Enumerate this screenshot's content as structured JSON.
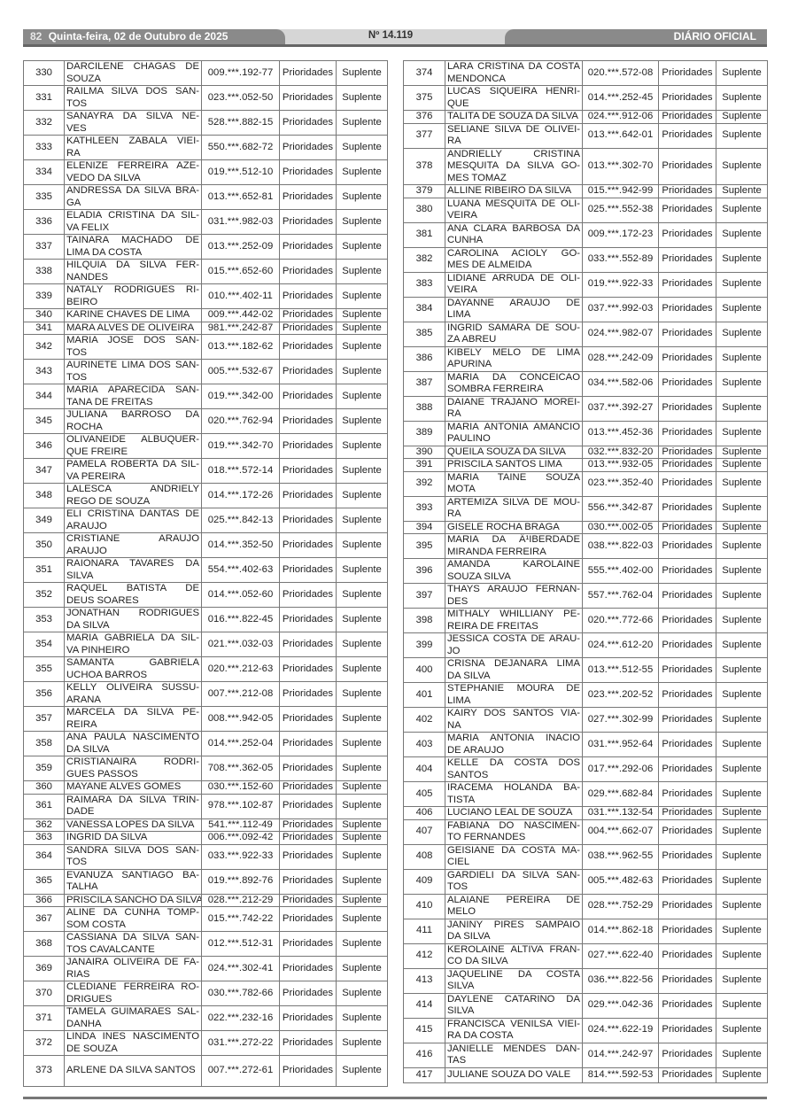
{
  "header": {
    "page_number": "82",
    "date": "Quinta-feira, 02 de Outubro de 2025",
    "edition": "Nº 14.119",
    "publication": "DIÁRIO OFICIAL"
  },
  "tables": {
    "left": [
      {
        "n": "330",
        "name": "DARCILENE CHAGAS DE\nSOUZA",
        "cpf": "009.***.192-77",
        "cat": "Prioridades",
        "status": "Suplente"
      },
      {
        "n": "331",
        "name": "RAILMA SILVA DOS SAN-\nTOS",
        "cpf": "023.***.052-50",
        "cat": "Prioridades",
        "status": "Suplente"
      },
      {
        "n": "332",
        "name": "SANAYRA DA SILVA NE-\nVES",
        "cpf": "528.***.882-15",
        "cat": "Prioridades",
        "status": "Suplente"
      },
      {
        "n": "333",
        "name": "KATHLEEN ZABALA VIEI-\nRA",
        "cpf": "550.***.682-72",
        "cat": "Prioridades",
        "status": "Suplente"
      },
      {
        "n": "334",
        "name": "ELENIZE FERREIRA AZE-\nVEDO DA SILVA",
        "cpf": "019.***.512-10",
        "cat": "Prioridades",
        "status": "Suplente"
      },
      {
        "n": "335",
        "name": "ANDRESSA DA SILVA BRA-\nGA",
        "cpf": "013.***.652-81",
        "cat": "Prioridades",
        "status": "Suplente"
      },
      {
        "n": "336",
        "name": "ELADIA CRISTINA DA SIL-\nVA FELIX",
        "cpf": "031.***.982-03",
        "cat": "Prioridades",
        "status": "Suplente"
      },
      {
        "n": "337",
        "name": "TAINARA MACHADO DE\nLIMA DA COSTA",
        "cpf": "013.***.252-09",
        "cat": "Prioridades",
        "status": "Suplente"
      },
      {
        "n": "338",
        "name": "HILQUIA DA SILVA FER-\nNANDES",
        "cpf": "015.***.652-60",
        "cat": "Prioridades",
        "status": "Suplente"
      },
      {
        "n": "339",
        "name": "NATALY RODRIGUES RI-\nBEIRO",
        "cpf": "010.***.402-11",
        "cat": "Prioridades",
        "status": "Suplente"
      },
      {
        "n": "340",
        "name": "KARINE CHAVES DE LIMA",
        "cpf": "009.***.442-02",
        "cat": "Prioridades",
        "status": "Suplente"
      },
      {
        "n": "341",
        "name": "MARA ALVES DE OLIVEIRA",
        "cpf": "981.***.242-87",
        "cat": "Prioridades",
        "status": "Suplente"
      },
      {
        "n": "342",
        "name": "MARIA JOSE DOS SAN-\nTOS",
        "cpf": "013.***.182-62",
        "cat": "Prioridades",
        "status": "Suplente"
      },
      {
        "n": "343",
        "name": "AURINETE LIMA DOS SAN-\nTOS",
        "cpf": "005.***.532-67",
        "cat": "Prioridades",
        "status": "Suplente"
      },
      {
        "n": "344",
        "name": "MARIA APARECIDA SAN-\nTANA DE FREITAS",
        "cpf": "019.***.342-00",
        "cat": "Prioridades",
        "status": "Suplente"
      },
      {
        "n": "345",
        "name": "JULIANA BARROSO DA\nROCHA",
        "cpf": "020.***.762-94",
        "cat": "Prioridades",
        "status": "Suplente"
      },
      {
        "n": "346",
        "name": "OLIVANEIDE ALBUQUER-\nQUE FREIRE",
        "cpf": "019.***.342-70",
        "cat": "Prioridades",
        "status": "Suplente"
      },
      {
        "n": "347",
        "name": "PAMELA ROBERTA DA SIL-\nVA PEREIRA",
        "cpf": "018.***.572-14",
        "cat": "Prioridades",
        "status": "Suplente"
      },
      {
        "n": "348",
        "name": "LALESCA ANDRIELY\nREGO DE SOUZA",
        "cpf": "014.***.172-26",
        "cat": "Prioridades",
        "status": "Suplente"
      },
      {
        "n": "349",
        "name": "ELI CRISTINA DANTAS DE\nARAUJO",
        "cpf": "025.***.842-13",
        "cat": "Prioridades",
        "status": "Suplente"
      },
      {
        "n": "350",
        "name": "CRISTIANE ARAUJO\nARAUJO",
        "cpf": "014.***.352-50",
        "cat": "Prioridades",
        "status": "Suplente"
      },
      {
        "n": "351",
        "name": "RAIONARA TAVARES DA\nSILVA",
        "cpf": "554.***.402-63",
        "cat": "Prioridades",
        "status": "Suplente"
      },
      {
        "n": "352",
        "name": "RAQUEL BATISTA DE\nDEUS SOARES",
        "cpf": "014.***.052-60",
        "cat": "Prioridades",
        "status": "Suplente"
      },
      {
        "n": "353",
        "name": "JONATHAN RODRIGUES\nDA SILVA",
        "cpf": "016.***.822-45",
        "cat": "Prioridades",
        "status": "Suplente"
      },
      {
        "n": "354",
        "name": "MARIA GABRIELA DA SIL-\nVA PINHEIRO",
        "cpf": "021.***.032-03",
        "cat": "Prioridades",
        "status": "Suplente"
      },
      {
        "n": "355",
        "name": "SAMANTA GABRIELA\nUCHOA BARROS",
        "cpf": "020.***.212-63",
        "cat": "Prioridades",
        "status": "Suplente"
      },
      {
        "n": "356",
        "name": "KELLY OLIVEIRA SUSSU-\nARANA",
        "cpf": "007.***.212-08",
        "cat": "Prioridades",
        "status": "Suplente"
      },
      {
        "n": "357",
        "name": "MARCELA DA SILVA PE-\nREIRA",
        "cpf": "008.***.942-05",
        "cat": "Prioridades",
        "status": "Suplente"
      },
      {
        "n": "358",
        "name": "ANA PAULA NASCIMENTO\nDA SILVA",
        "cpf": "014.***.252-04",
        "cat": "Prioridades",
        "status": "Suplente"
      },
      {
        "n": "359",
        "name": "CRISTIANAIRA RODRI-\nGUES PASSOS",
        "cpf": "708.***.362-05",
        "cat": "Prioridades",
        "status": "Suplente"
      },
      {
        "n": "360",
        "name": "MAYANE ALVES GOMES",
        "cpf": "030.***.152-60",
        "cat": "Prioridades",
        "status": "Suplente"
      },
      {
        "n": "361",
        "name": "RAIMARA DA SILVA TRIN-\nDADE",
        "cpf": "978.***.102-87",
        "cat": "Prioridades",
        "status": "Suplente"
      },
      {
        "n": "362",
        "name": "VANESSA LOPES DA SILVA",
        "cpf": "541.***.112-49",
        "cat": "Prioridades",
        "status": "Suplente"
      },
      {
        "n": "363",
        "name": "INGRID DA SILVA",
        "cpf": "006.***.092-42",
        "cat": "Prioridades",
        "status": "Suplente"
      },
      {
        "n": "364",
        "name": "SANDRA SILVA DOS SAN-\nTOS",
        "cpf": "033.***.922-33",
        "cat": "Prioridades",
        "status": "Suplente"
      },
      {
        "n": "365",
        "name": "EVANUZA SANTIAGO BA-\nTALHA",
        "cpf": "019.***.892-76",
        "cat": "Prioridades",
        "status": "Suplente"
      },
      {
        "n": "366",
        "name": "PRISCILA SANCHO DA SILVA",
        "cpf": "028.***.212-29",
        "cat": "Prioridades",
        "status": "Suplente"
      },
      {
        "n": "367",
        "name": "ALINE DA CUNHA TOMP-\nSOM COSTA",
        "cpf": "015.***.742-22",
        "cat": "Prioridades",
        "status": "Suplente"
      },
      {
        "n": "368",
        "name": "CASSIANA DA SILVA SAN-\nTOS CAVALCANTE",
        "cpf": "012.***.512-31",
        "cat": "Prioridades",
        "status": "Suplente"
      },
      {
        "n": "369",
        "name": "JANAIRA OLIVEIRA DE FA-\nRIAS",
        "cpf": "024.***.302-41",
        "cat": "Prioridades",
        "status": "Suplente"
      },
      {
        "n": "370",
        "name": "CLEDIANE FERREIRA RO-\nDRIGUES",
        "cpf": "030.***.782-66",
        "cat": "Prioridades",
        "status": "Suplente"
      },
      {
        "n": "371",
        "name": "TAMELA GUIMARAES SAL-\nDANHA",
        "cpf": "022.***.232-16",
        "cat": "Prioridades",
        "status": "Suplente"
      },
      {
        "n": "372",
        "name": "LINDA INES NASCIMENTO\nDE SOUZA",
        "cpf": "031.***.272-22",
        "cat": "Prioridades",
        "status": "Suplente"
      },
      {
        "n": "373",
        "name": "ARLENE DA SILVA SANTOS",
        "cpf": "007.***.272-61",
        "cat": "Prioridades",
        "status": "Suplente"
      }
    ],
    "right": [
      {
        "n": "374",
        "name": "LARA CRISTINA DA COSTA\nMENDONCA",
        "cpf": "020.***.572-08",
        "cat": "Prioridades",
        "status": "Suplente"
      },
      {
        "n": "375",
        "name": "LUCAS SIQUEIRA HENRI-\nQUE",
        "cpf": "014.***.252-45",
        "cat": "Prioridades",
        "status": "Suplente"
      },
      {
        "n": "376",
        "name": "TALITA DE SOUZA DA SILVA",
        "cpf": "024.***.912-06",
        "cat": "Prioridades",
        "status": "Suplente"
      },
      {
        "n": "377",
        "name": "SELIANE SILVA DE OLIVEI-\nRA",
        "cpf": "013.***.642-01",
        "cat": "Prioridades",
        "status": "Suplente"
      },
      {
        "n": "378",
        "name": "ANDRIELLY CRISTINA\nMESQUITA DA SILVA GO-\nMES TOMAZ",
        "cpf": "013.***.302-70",
        "cat": "Prioridades",
        "status": "Suplente"
      },
      {
        "n": "379",
        "name": "ALLINE RIBEIRO DA SILVA",
        "cpf": "015.***.942-99",
        "cat": "Prioridades",
        "status": "Suplente"
      },
      {
        "n": "380",
        "name": "LUANA MESQUITA DE OLI-\nVEIRA",
        "cpf": "025.***.552-38",
        "cat": "Prioridades",
        "status": "Suplente"
      },
      {
        "n": "381",
        "name": "ANA CLARA BARBOSA DA\nCUNHA",
        "cpf": "009.***.172-23",
        "cat": "Prioridades",
        "status": "Suplente"
      },
      {
        "n": "382",
        "name": "CAROLINA ACIOLY GO-\nMES DE ALMEIDA",
        "cpf": "033.***.552-89",
        "cat": "Prioridades",
        "status": "Suplente"
      },
      {
        "n": "383",
        "name": "LIDIANE ARRUDA DE OLI-\nVEIRA",
        "cpf": "019.***.922-33",
        "cat": "Prioridades",
        "status": "Suplente"
      },
      {
        "n": "384",
        "name": "DAYANNE ARAUJO DE\nLIMA",
        "cpf": "037.***.992-03",
        "cat": "Prioridades",
        "status": "Suplente"
      },
      {
        "n": "385",
        "name": "INGRID SAMARA DE SOU-\nZA ABREU",
        "cpf": "024.***.982-07",
        "cat": "Prioridades",
        "status": "Suplente"
      },
      {
        "n": "386",
        "name": "KIBELY MELO DE LIMA\nAPURINA",
        "cpf": "028.***.242-09",
        "cat": "Prioridades",
        "status": "Suplente"
      },
      {
        "n": "387",
        "name": "MARIA DA CONCEICAO\nSOMBRA FERREIRA",
        "cpf": "034.***.582-06",
        "cat": "Prioridades",
        "status": "Suplente"
      },
      {
        "n": "388",
        "name": "DAIANE TRAJANO MOREI-\nRA",
        "cpf": "037.***.392-27",
        "cat": "Prioridades",
        "status": "Suplente"
      },
      {
        "n": "389",
        "name": "MARIA ANTONIA AMANCIO\nPAULINO",
        "cpf": "013.***.452-36",
        "cat": "Prioridades",
        "status": "Suplente"
      },
      {
        "n": "390",
        "name": "QUEILA SOUZA DA SILVA",
        "cpf": "032.***.832-20",
        "cat": "Prioridades",
        "status": "Suplente"
      },
      {
        "n": "391",
        "name": "PRISCILA SANTOS LIMA",
        "cpf": "013.***.932-05",
        "cat": "Prioridades",
        "status": "Suplente"
      },
      {
        "n": "392",
        "name": "MARIA TAINE SOUZA\nMOTA",
        "cpf": "023.***.352-40",
        "cat": "Prioridades",
        "status": "Suplente"
      },
      {
        "n": "393",
        "name": "ARTEMIZA SILVA DE MOU-\nRA",
        "cpf": "556.***.342-87",
        "cat": "Prioridades",
        "status": "Suplente"
      },
      {
        "n": "394",
        "name": "GISELE ROCHA BRAGA",
        "cpf": "030.***.002-05",
        "cat": "Prioridades",
        "status": "Suplente"
      },
      {
        "n": "395",
        "name": "MARIA DA Ä¹IBERDADE\nMIRANDA FERREIRA",
        "cpf": "038.***.822-03",
        "cat": "Prioridades",
        "status": "Suplente"
      },
      {
        "n": "396",
        "name": "AMANDA KAROLAINE\nSOUZA SILVA",
        "cpf": "555.***.402-00",
        "cat": "Prioridades",
        "status": "Suplente"
      },
      {
        "n": "397",
        "name": "THAYS ARAUJO FERNAN-\nDES",
        "cpf": "557.***.762-04",
        "cat": "Prioridades",
        "status": "Suplente"
      },
      {
        "n": "398",
        "name": "MITHALY WHILLIANY PE-\nREIRA DE FREITAS",
        "cpf": "020.***.772-66",
        "cat": "Prioridades",
        "status": "Suplente"
      },
      {
        "n": "399",
        "name": "JESSICA COSTA DE ARAU-\nJO",
        "cpf": "024.***.612-20",
        "cat": "Prioridades",
        "status": "Suplente"
      },
      {
        "n": "400",
        "name": "CRISNA DEJANARA LIMA\nDA SILVA",
        "cpf": "013.***.512-55",
        "cat": "Prioridades",
        "status": "Suplente"
      },
      {
        "n": "401",
        "name": "STEPHANIE MOURA DE\nLIMA",
        "cpf": "023.***.202-52",
        "cat": "Prioridades",
        "status": "Suplente"
      },
      {
        "n": "402",
        "name": "KAIRY DOS SANTOS VIA-\nNA",
        "cpf": "027.***.302-99",
        "cat": "Prioridades",
        "status": "Suplente"
      },
      {
        "n": "403",
        "name": "MARIA ANTONIA INACIO\nDE ARAUJO",
        "cpf": "031.***.952-64",
        "cat": "Prioridades",
        "status": "Suplente"
      },
      {
        "n": "404",
        "name": "KELLE DA COSTA DOS\nSANTOS",
        "cpf": "017.***.292-06",
        "cat": "Prioridades",
        "status": "Suplente"
      },
      {
        "n": "405",
        "name": "IRACEMA HOLANDA BA-\nTISTA",
        "cpf": "029.***.682-84",
        "cat": "Prioridades",
        "status": "Suplente"
      },
      {
        "n": "406",
        "name": "LUCIANO LEAL DE SOUZA",
        "cpf": "031.***.132-54",
        "cat": "Prioridades",
        "status": "Suplente"
      },
      {
        "n": "407",
        "name": "FABIANA DO NASCIMEN-\nTO FERNANDES",
        "cpf": "004.***.662-07",
        "cat": "Prioridades",
        "status": "Suplente"
      },
      {
        "n": "408",
        "name": "GEISIANE DA COSTA MA-\nCIEL",
        "cpf": "038.***.962-55",
        "cat": "Prioridades",
        "status": "Suplente"
      },
      {
        "n": "409",
        "name": "GARDIELI DA SILVA SAN-\nTOS",
        "cpf": "005.***.482-63",
        "cat": "Prioridades",
        "status": "Suplente"
      },
      {
        "n": "410",
        "name": "ALAIANE PEREIRA DE\nMELO",
        "cpf": "028.***.752-29",
        "cat": "Prioridades",
        "status": "Suplente"
      },
      {
        "n": "411",
        "name": "JANINY PIRES SAMPAIO\nDA SILVA",
        "cpf": "014.***.862-18",
        "cat": "Prioridades",
        "status": "Suplente"
      },
      {
        "n": "412",
        "name": "KEROLAINE ALTIVA FRAN-\nCO DA SILVA",
        "cpf": "027.***.622-40",
        "cat": "Prioridades",
        "status": "Suplente"
      },
      {
        "n": "413",
        "name": "JAQUELINE DA COSTA\nSILVA",
        "cpf": "036.***.822-56",
        "cat": "Prioridades",
        "status": "Suplente"
      },
      {
        "n": "414",
        "name": "DAYLENE CATARINO DA\nSILVA",
        "cpf": "029.***.042-36",
        "cat": "Prioridades",
        "status": "Suplente"
      },
      {
        "n": "415",
        "name": "FRANCISCA VENILSA VIEI-\nRA DA COSTA",
        "cpf": "024.***.622-19",
        "cat": "Prioridades",
        "status": "Suplente"
      },
      {
        "n": "416",
        "name": "JANIELLE MENDES DAN-\nTAS",
        "cpf": "014.***.242-97",
        "cat": "Prioridades",
        "status": "Suplente"
      },
      {
        "n": "417",
        "name": "JULIANE SOUZA DO VALE",
        "cpf": "814.***.592-53",
        "cat": "Prioridades",
        "status": "Suplente"
      }
    ]
  }
}
